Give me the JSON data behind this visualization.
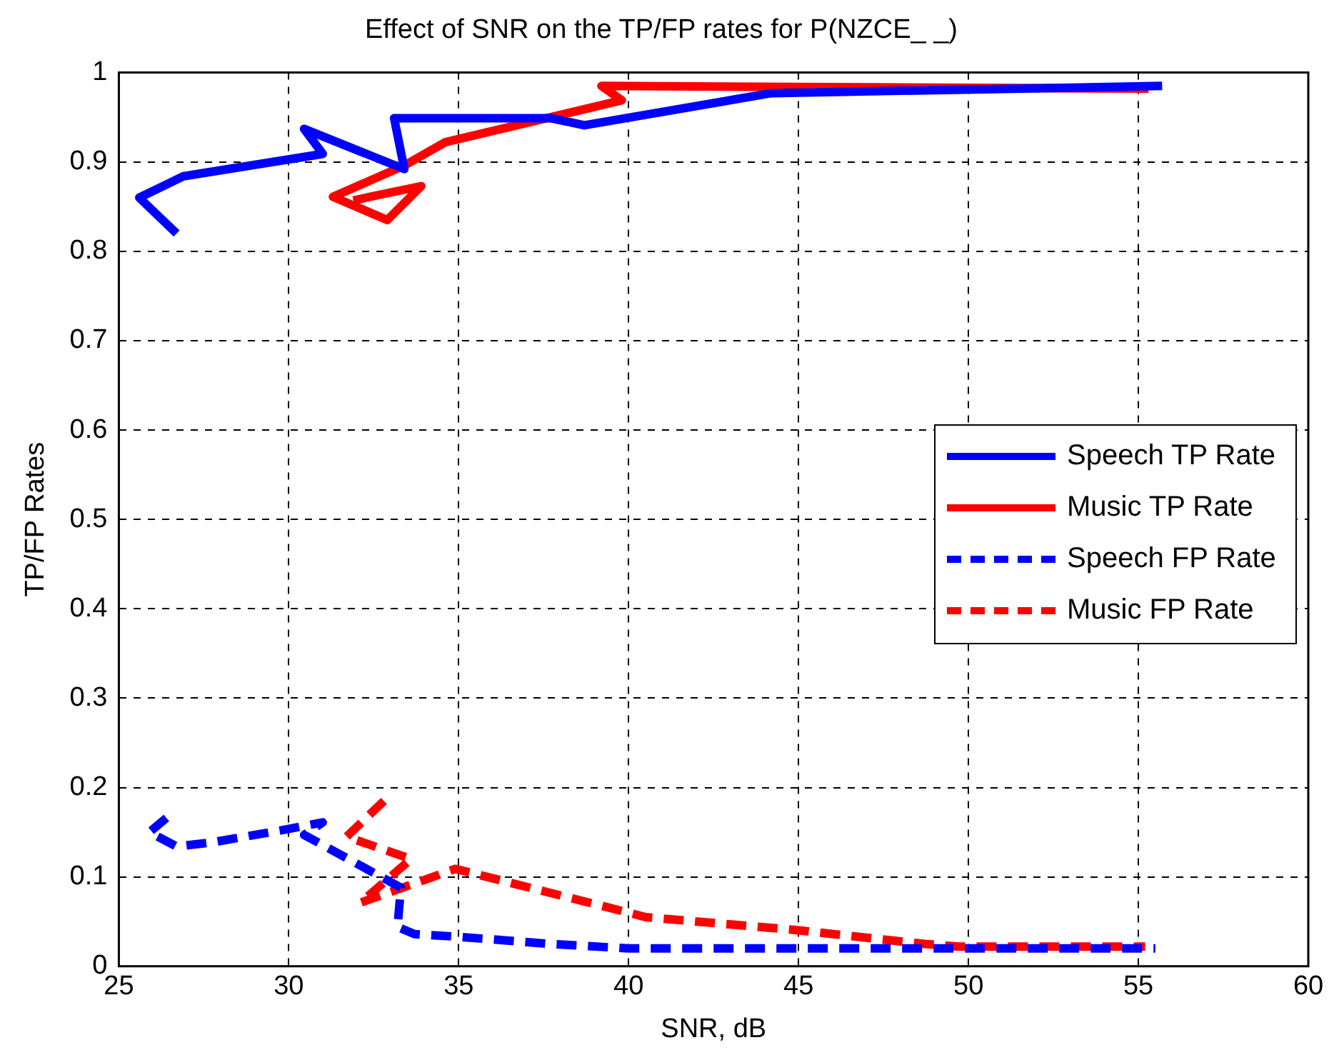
{
  "chart_data": {
    "type": "line",
    "title": "Effect of SNR on the TP/FP rates for P(NZCE_ _)",
    "xlabel": "SNR, dB",
    "ylabel": "TP/FP Rates",
    "xlim": [
      25,
      60
    ],
    "xticks": [
      25,
      30,
      35,
      40,
      45,
      50,
      55,
      60
    ],
    "ylim": [
      0,
      1
    ],
    "yticks": [
      0,
      0.1,
      0.2,
      0.3,
      0.4,
      0.5,
      0.6,
      0.7,
      0.8,
      0.9,
      1
    ],
    "grid": true,
    "legend": "right",
    "marker": "none",
    "series": [
      {
        "name": "Speech TP Rate",
        "color": "#0000ff",
        "line_style": "solid",
        "x": [
          26.7,
          25.6,
          26.9,
          31.0,
          30.45,
          33.4,
          33.1,
          37.7,
          38.7,
          44.2,
          55.7
        ],
        "values": [
          0.82,
          0.86,
          0.884,
          0.909,
          0.937,
          0.892,
          0.949,
          0.949,
          0.941,
          0.977,
          0.985
        ]
      },
      {
        "name": "Music TP Rate",
        "color": "#ff0000",
        "line_style": "solid",
        "x": [
          31.9,
          33.9,
          32.9,
          31.3,
          33.4,
          34.6,
          39.8,
          39.2,
          55.3
        ],
        "values": [
          0.857,
          0.873,
          0.835,
          0.861,
          0.896,
          0.922,
          0.969,
          0.985,
          0.982
        ]
      },
      {
        "name": "Speech FP Rate",
        "color": "#0000ff",
        "line_style": "dashed",
        "x": [
          26.4,
          25.9,
          26.7,
          27.8,
          29.9,
          31.0,
          30.45,
          33.3,
          33.2,
          33.7,
          35,
          37.7,
          40,
          55.5
        ],
        "values": [
          0.166,
          0.15,
          0.134,
          0.139,
          0.153,
          0.161,
          0.147,
          0.088,
          0.044,
          0.036,
          0.033,
          0.025,
          0.02,
          0.02
        ]
      },
      {
        "name": "Music FP Rate",
        "color": "#ff0000",
        "line_style": "dashed",
        "x": [
          32.8,
          31.7,
          33.6,
          32.1,
          34.9,
          40.0,
          40.5,
          44.8,
          48.7,
          49.7,
          55.2
        ],
        "values": [
          0.185,
          0.145,
          0.12,
          0.071,
          0.109,
          0.06,
          0.055,
          0.041,
          0.025,
          0.022,
          0.022
        ]
      }
    ]
  }
}
